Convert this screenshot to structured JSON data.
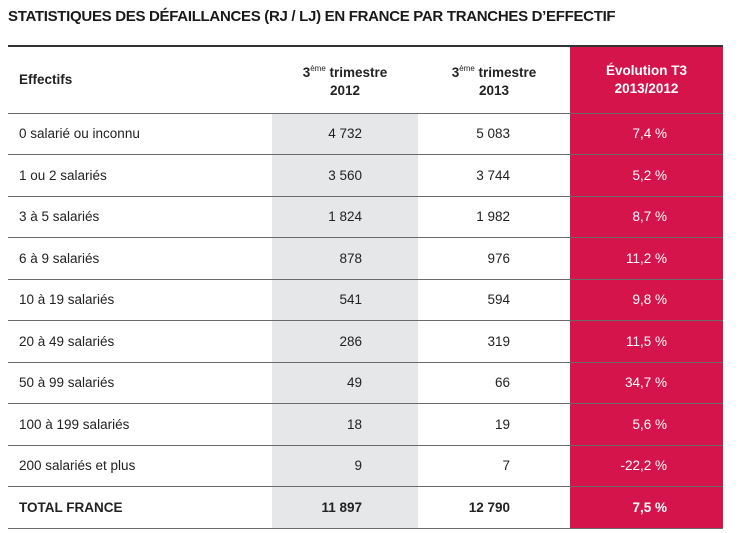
{
  "title": "STATISTIQUES DES DÉFAILLANCES (RJ / LJ) EN FRANCE PAR TRANCHES D’EFFECTIF",
  "table": {
    "header": [
      {
        "label": "Effectifs"
      },
      {
        "num": "3",
        "sup": "ème",
        "text": "trimestre",
        "line2": "2012"
      },
      {
        "num": "3",
        "sup": "ème",
        "text": "trimestre",
        "line2": "2013"
      },
      {
        "text": "Évolution T3",
        "line2": "2013/2012"
      }
    ],
    "rows": [
      [
        "0 salarié ou inconnu",
        "4 732",
        "5 083",
        "7,4 %"
      ],
      [
        "1 ou 2 salariés",
        "3 560",
        "3 744",
        "5,2 %"
      ],
      [
        "3 à 5 salariés",
        "1 824",
        "1 982",
        "8,7 %"
      ],
      [
        "6 à 9 salariés",
        "878",
        "976",
        "11,2 %"
      ],
      [
        "10 à 19 salariés",
        "541",
        "594",
        "9,8 %"
      ],
      [
        "20 à 49 salariés",
        "286",
        "319",
        "11,5 %"
      ],
      [
        "50 à 99 salariés",
        "49",
        "66",
        "34,7 %"
      ],
      [
        "100 à 199 salariés",
        "18",
        "19",
        "5,6 %"
      ],
      [
        "200 salariés et plus",
        "9",
        "7",
        "-22,2 %"
      ]
    ],
    "total": [
      "TOTAL FRANCE",
      "11 897",
      "12 790",
      "7,5 %"
    ]
  }
}
